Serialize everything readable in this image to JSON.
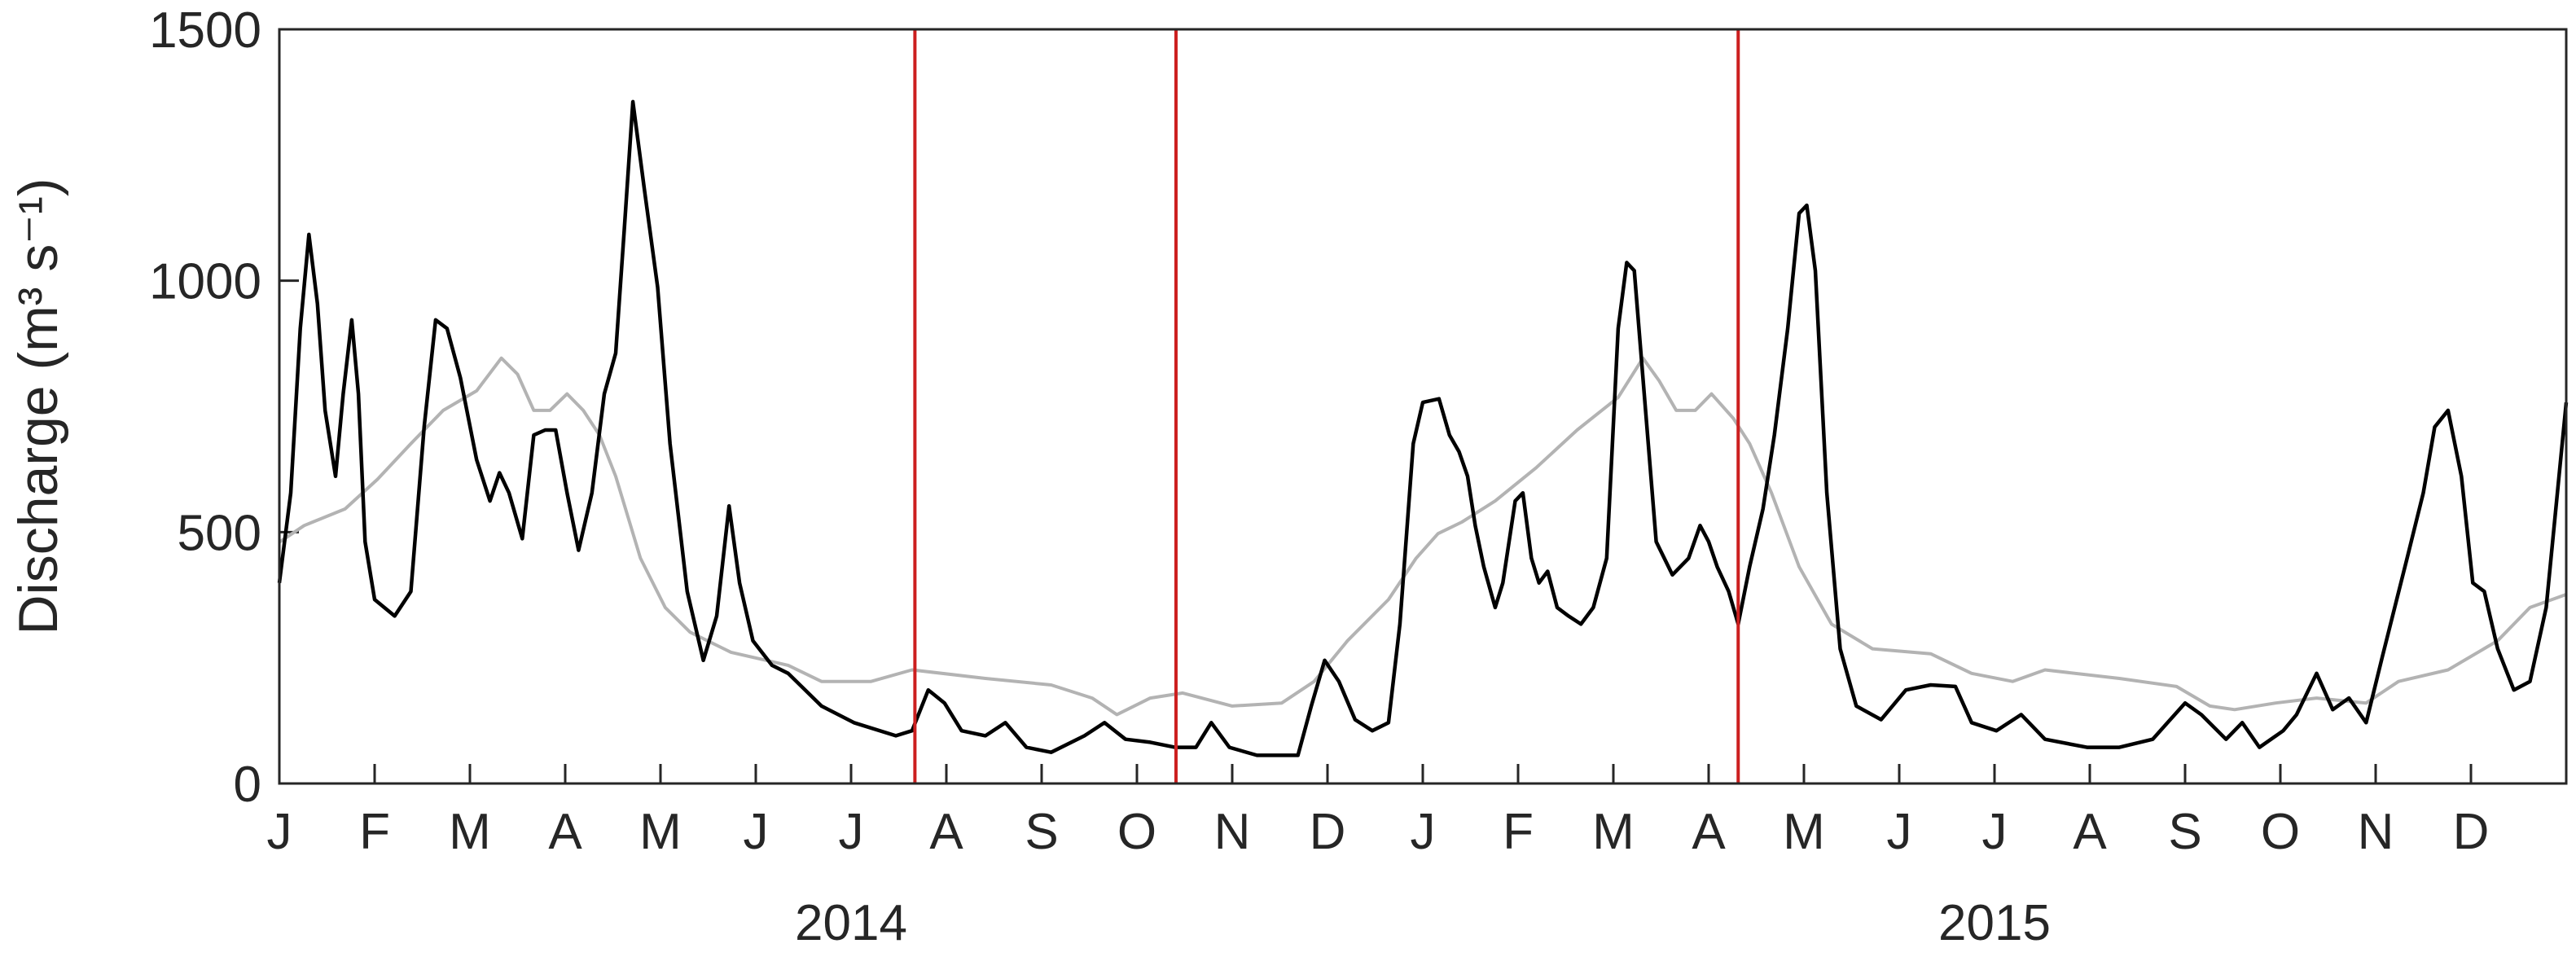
{
  "chart_data": {
    "type": "line",
    "ylabel": "Discharge (m³ s⁻¹)",
    "xlim": [
      0,
      24
    ],
    "ylim": [
      0,
      1500
    ],
    "yticks": [
      0,
      500,
      1000,
      1500
    ],
    "xticks": [
      {
        "value": 0,
        "label": "J"
      },
      {
        "value": 1,
        "label": "F"
      },
      {
        "value": 2,
        "label": "M"
      },
      {
        "value": 3,
        "label": "A"
      },
      {
        "value": 4,
        "label": "M"
      },
      {
        "value": 5,
        "label": "J"
      },
      {
        "value": 6,
        "label": "J"
      },
      {
        "value": 7,
        "label": "A"
      },
      {
        "value": 8,
        "label": "S"
      },
      {
        "value": 9,
        "label": "O"
      },
      {
        "value": 10,
        "label": "N"
      },
      {
        "value": 11,
        "label": "D"
      },
      {
        "value": 12,
        "label": "J"
      },
      {
        "value": 13,
        "label": "F"
      },
      {
        "value": 14,
        "label": "M"
      },
      {
        "value": 15,
        "label": "A"
      },
      {
        "value": 16,
        "label": "M"
      },
      {
        "value": 17,
        "label": "J"
      },
      {
        "value": 18,
        "label": "J"
      },
      {
        "value": 19,
        "label": "A"
      },
      {
        "value": 20,
        "label": "S"
      },
      {
        "value": 21,
        "label": "O"
      },
      {
        "value": 22,
        "label": "N"
      },
      {
        "value": 23,
        "label": "D"
      }
    ],
    "year_labels": [
      "2014",
      "2015"
    ],
    "vlines": [
      6.67,
      9.41,
      15.31
    ],
    "vline_color": "#cc1f1f",
    "grid": false,
    "series": [
      {
        "color": "#b3b3b3",
        "x": [
          0,
          0.26,
          0.69,
          1.03,
          1.38,
          1.72,
          2.07,
          2.33,
          2.5,
          2.67,
          2.84,
          3.02,
          3.19,
          3.36,
          3.53,
          3.79,
          4.05,
          4.31,
          4.74,
          5.34,
          5.69,
          6.21,
          6.64,
          7.41,
          8.1,
          8.53,
          8.79,
          9.14,
          9.48,
          10,
          10.52,
          10.86,
          11.21,
          11.64,
          11.93,
          12.16,
          12.41,
          12.76,
          13.19,
          13.62,
          14.05,
          14.31,
          14.48,
          14.66,
          14.86,
          15.03,
          15.26,
          15.43,
          15.66,
          15.95,
          16.29,
          16.72,
          17.33,
          17.76,
          18.19,
          18.53,
          19.31,
          19.91,
          20.26,
          20.52,
          20.95,
          21.38,
          21.9,
          22.24,
          22.76,
          23.28,
          23.62,
          24
        ],
        "values": [
          480,
          513,
          546,
          605,
          676,
          742,
          781,
          846,
          814,
          742,
          742,
          775,
          742,
          693,
          611,
          448,
          350,
          301,
          261,
          235,
          203,
          203,
          226,
          209,
          196,
          170,
          137,
          170,
          180,
          154,
          160,
          203,
          284,
          366,
          448,
          497,
          520,
          562,
          628,
          703,
          768,
          846,
          801,
          742,
          742,
          775,
          726,
          676,
          578,
          431,
          317,
          268,
          258,
          219,
          203,
          226,
          209,
          193,
          154,
          147,
          160,
          170,
          160,
          203,
          226,
          284,
          350,
          376
        ]
      },
      {
        "color": "#000000",
        "x": [
          0,
          0.12,
          0.22,
          0.31,
          0.4,
          0.48,
          0.59,
          0.67,
          0.76,
          0.83,
          0.9,
          1,
          1.21,
          1.38,
          1.52,
          1.64,
          1.76,
          1.9,
          2.07,
          2.21,
          2.31,
          2.41,
          2.55,
          2.67,
          2.79,
          2.9,
          3.02,
          3.14,
          3.28,
          3.41,
          3.53,
          3.62,
          3.71,
          3.83,
          3.97,
          4.1,
          4.28,
          4.45,
          4.59,
          4.72,
          4.83,
          4.97,
          5.17,
          5.34,
          5.69,
          6.03,
          6.47,
          6.64,
          6.81,
          6.98,
          7.16,
          7.41,
          7.62,
          7.84,
          8.1,
          8.45,
          8.66,
          8.88,
          9.14,
          9.4,
          9.62,
          9.78,
          9.97,
          10.26,
          10.69,
          10.83,
          10.97,
          11.12,
          11.29,
          11.47,
          11.64,
          11.76,
          11.9,
          12,
          12.17,
          12.28,
          12.38,
          12.47,
          12.55,
          12.64,
          12.76,
          12.84,
          12.97,
          13.05,
          13.14,
          13.22,
          13.31,
          13.41,
          13.53,
          13.66,
          13.79,
          13.93,
          14.05,
          14.14,
          14.22,
          14.31,
          14.45,
          14.62,
          14.79,
          14.91,
          15,
          15.09,
          15.21,
          15.31,
          15.43,
          15.57,
          15.69,
          15.83,
          15.95,
          16.03,
          16.12,
          16.24,
          16.38,
          16.55,
          16.81,
          17.07,
          17.33,
          17.59,
          17.76,
          18.02,
          18.28,
          18.53,
          18.97,
          19.31,
          19.66,
          20,
          20.17,
          20.43,
          20.6,
          20.78,
          21.03,
          21.17,
          21.38,
          21.55,
          21.72,
          21.9,
          22.07,
          22.33,
          22.5,
          22.62,
          22.76,
          22.9,
          23.02,
          23.14,
          23.28,
          23.45,
          23.62,
          23.79,
          24
        ],
        "values": [
          399,
          578,
          905,
          1092,
          954,
          742,
          611,
          775,
          922,
          775,
          481,
          366,
          333,
          382,
          709,
          922,
          905,
          807,
          644,
          562,
          618,
          578,
          487,
          693,
          703,
          703,
          578,
          464,
          578,
          775,
          856,
          1101,
          1356,
          1183,
          987,
          676,
          382,
          245,
          333,
          552,
          399,
          284,
          235,
          219,
          154,
          121,
          95,
          105,
          186,
          160,
          105,
          95,
          121,
          72,
          62,
          95,
          121,
          88,
          82,
          72,
          72,
          121,
          72,
          56,
          56,
          154,
          245,
          203,
          127,
          105,
          121,
          317,
          676,
          758,
          765,
          693,
          660,
          611,
          513,
          431,
          350,
          399,
          562,
          578,
          448,
          399,
          422,
          350,
          333,
          317,
          350,
          448,
          905,
          1036,
          1020,
          807,
          481,
          415,
          448,
          513,
          481,
          431,
          382,
          317,
          431,
          546,
          693,
          905,
          1134,
          1150,
          1020,
          578,
          268,
          154,
          127,
          186,
          196,
          193,
          121,
          105,
          137,
          88,
          72,
          72,
          88,
          160,
          137,
          88,
          121,
          72,
          105,
          137,
          219,
          147,
          170,
          121,
          252,
          448,
          578,
          709,
          742,
          611,
          399,
          382,
          268,
          186,
          203,
          350,
          758
        ]
      }
    ]
  }
}
